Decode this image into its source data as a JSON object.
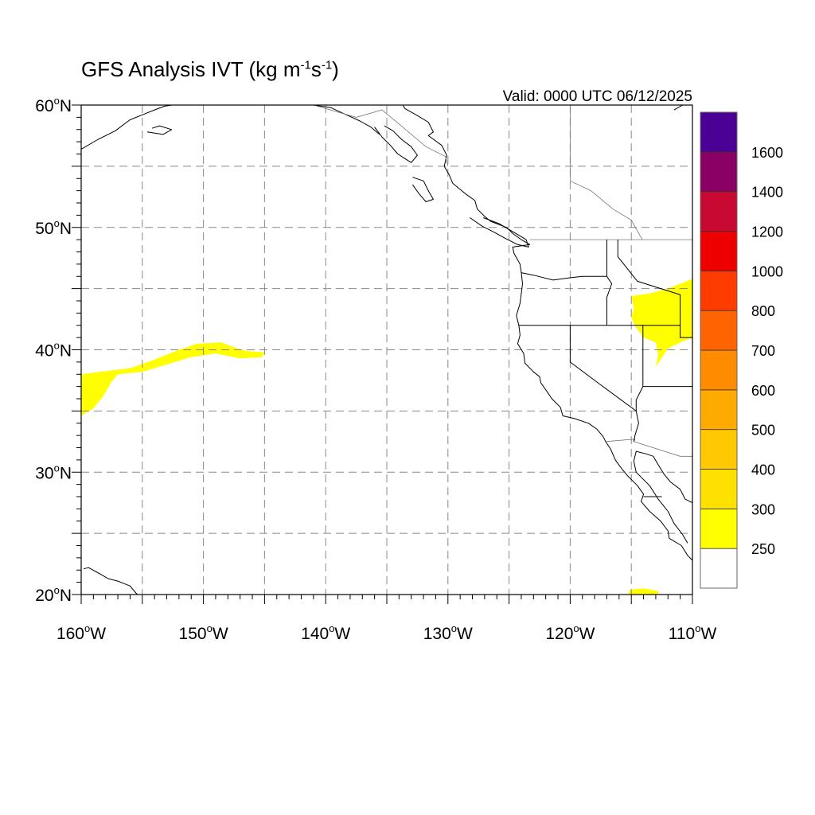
{
  "title": {
    "text": "GFS Analysis IVT (kg m",
    "sup1": "-1",
    "mid": "s",
    "sup2": "-1",
    "end": ")"
  },
  "valid_time": "Valid: 0000 UTC 06/12/2025",
  "map": {
    "lon_range": [
      -160,
      -110
    ],
    "lat_range": [
      20,
      60
    ],
    "lat_labels": [
      {
        "value": 60,
        "deg": "60",
        "hemi": "N"
      },
      {
        "value": 50,
        "deg": "50",
        "hemi": "N"
      },
      {
        "value": 40,
        "deg": "40",
        "hemi": "N"
      },
      {
        "value": 30,
        "deg": "30",
        "hemi": "N"
      },
      {
        "value": 20,
        "deg": "20",
        "hemi": "N"
      }
    ],
    "lon_labels": [
      {
        "value": -160,
        "deg": "160",
        "hemi": "W"
      },
      {
        "value": -150,
        "deg": "150",
        "hemi": "W"
      },
      {
        "value": -140,
        "deg": "140",
        "hemi": "W"
      },
      {
        "value": -130,
        "deg": "130",
        "hemi": "W"
      },
      {
        "value": -120,
        "deg": "120",
        "hemi": "W"
      },
      {
        "value": -110,
        "deg": "110",
        "hemi": "W"
      }
    ],
    "gridline_interval_deg": 5,
    "gridline_style": "dashed"
  },
  "colorbar": {
    "levels": [
      "250",
      "300",
      "400",
      "500",
      "600",
      "700",
      "800",
      "1000",
      "1200",
      "1400",
      "1600"
    ],
    "colors": [
      "#ffffff",
      "#ffff00",
      "#ffe100",
      "#ffc800",
      "#ffaa00",
      "#ff8c00",
      "#ff6400",
      "#ff3c00",
      "#ee0000",
      "#c80a32",
      "#8a0064",
      "#4b0096"
    ]
  },
  "ivt_regions": [
    {
      "name": "north-pacific-plume",
      "color": "#ffff00",
      "polygon": [
        [
          -160,
          38.0
        ],
        [
          -158.5,
          38.2
        ],
        [
          -156,
          38.5
        ],
        [
          -154,
          39.2
        ],
        [
          -152,
          40.0
        ],
        [
          -150.5,
          40.5
        ],
        [
          -148.5,
          40.6
        ],
        [
          -147.5,
          40.2
        ],
        [
          -146.5,
          39.9
        ],
        [
          -145,
          39.8
        ],
        [
          -145.2,
          39.4
        ],
        [
          -147,
          39.3
        ],
        [
          -149,
          39.7
        ],
        [
          -151,
          39.4
        ],
        [
          -153,
          38.8
        ],
        [
          -155,
          38.2
        ],
        [
          -157,
          38.0
        ],
        [
          -157.5,
          37.4
        ],
        [
          -158.2,
          36.2
        ],
        [
          -159,
          35.2
        ],
        [
          -160,
          34.6
        ]
      ]
    },
    {
      "name": "idaho-montana-plume",
      "color": "#ffff00",
      "polygon": [
        [
          -115,
          44.4
        ],
        [
          -113.5,
          44.6
        ],
        [
          -112,
          45.0
        ],
        [
          -111,
          45.4
        ],
        [
          -110,
          45.8
        ],
        [
          -110,
          41.0
        ],
        [
          -111,
          40.6
        ],
        [
          -112,
          40.1
        ],
        [
          -112.6,
          39.2
        ],
        [
          -113,
          38.6
        ],
        [
          -112.8,
          39.6
        ],
        [
          -113,
          40.6
        ],
        [
          -114,
          41.0
        ],
        [
          -114.6,
          41.8
        ],
        [
          -115,
          42.6
        ],
        [
          -114.8,
          43.4
        ]
      ]
    },
    {
      "name": "southern-plume",
      "color": "#ffff00",
      "polygon": [
        [
          -115.3,
          20.0
        ],
        [
          -115.1,
          20.4
        ],
        [
          -114,
          20.5
        ],
        [
          -112.8,
          20.3
        ],
        [
          -112.8,
          20.0
        ]
      ]
    }
  ],
  "coast": {
    "north_america": [
      [
        -133.7,
        60
      ],
      [
        -133.5,
        59.7
      ],
      [
        -132.6,
        59.2
      ],
      [
        -131.6,
        58.6
      ],
      [
        -131.2,
        57.8
      ],
      [
        -131.6,
        57.5
      ],
      [
        -130.5,
        56.7
      ],
      [
        -130.1,
        55.9
      ],
      [
        -130.3,
        55.0
      ],
      [
        -129.9,
        54.3
      ],
      [
        -129.6,
        53.6
      ],
      [
        -128.5,
        52.7
      ],
      [
        -127.8,
        52.2
      ],
      [
        -127.6,
        51.5
      ],
      [
        -127.0,
        50.9
      ],
      [
        -126.5,
        50.5
      ],
      [
        -125.2,
        50.0
      ],
      [
        -124.7,
        49.5
      ],
      [
        -124.0,
        49.0
      ],
      [
        -123.3,
        48.6
      ],
      [
        -124.7,
        48.4
      ],
      [
        -124.6,
        47.9
      ],
      [
        -124.1,
        47.0
      ],
      [
        -124.0,
        46.3
      ],
      [
        -123.9,
        45.4
      ],
      [
        -124.0,
        44.6
      ],
      [
        -124.1,
        43.8
      ],
      [
        -124.4,
        42.8
      ],
      [
        -124.2,
        42.0
      ],
      [
        -124.1,
        41.2
      ],
      [
        -124.3,
        40.5
      ],
      [
        -123.8,
        39.7
      ],
      [
        -123.7,
        38.9
      ],
      [
        -123.0,
        38.2
      ],
      [
        -122.5,
        37.8
      ],
      [
        -122.4,
        37.3
      ],
      [
        -121.9,
        36.6
      ],
      [
        -121.5,
        36.0
      ],
      [
        -120.8,
        35.3
      ],
      [
        -120.6,
        34.6
      ],
      [
        -119.7,
        34.4
      ],
      [
        -118.5,
        34.0
      ],
      [
        -117.8,
        33.5
      ],
      [
        -117.3,
        32.9
      ],
      [
        -117.1,
        32.5
      ],
      [
        -116.7,
        31.9
      ],
      [
        -116.3,
        31.0
      ],
      [
        -115.8,
        30.3
      ],
      [
        -115.3,
        29.7
      ],
      [
        -114.5,
        28.9
      ],
      [
        -114.0,
        28.2
      ],
      [
        -114.2,
        27.6
      ],
      [
        -113.5,
        26.8
      ],
      [
        -112.6,
        26.0
      ],
      [
        -112.0,
        25.2
      ],
      [
        -111.9,
        24.6
      ],
      [
        -110.9,
        24.0
      ],
      [
        -110.4,
        23.2
      ],
      [
        -110.0,
        22.8
      ]
    ],
    "gulf_mexico": [
      [
        -110,
        27.5
      ],
      [
        -110.6,
        27.8
      ],
      [
        -111.0,
        28.6
      ],
      [
        -111.8,
        29.2
      ],
      [
        -112.3,
        29.8
      ],
      [
        -112.8,
        30.6
      ],
      [
        -113.2,
        31.3
      ],
      [
        -113.8,
        31.5
      ],
      [
        -114.6,
        31.7
      ],
      [
        -114.8,
        30.9
      ],
      [
        -114.6,
        30.0
      ],
      [
        -113.5,
        28.9
      ],
      [
        -112.8,
        27.8
      ],
      [
        -112.0,
        26.8
      ],
      [
        -111.5,
        25.8
      ],
      [
        -110.8,
        24.9
      ],
      [
        -110.4,
        24.2
      ]
    ],
    "alaska_main": [
      [
        -160,
        56.4
      ],
      [
        -158.6,
        57.2
      ],
      [
        -157.2,
        57.9
      ],
      [
        -156.0,
        58.8
      ],
      [
        -155.0,
        59.2
      ],
      [
        -154.0,
        59.6
      ],
      [
        -153.2,
        59.9
      ],
      [
        -152.6,
        60.0
      ]
    ],
    "alaska_panhandle": [
      [
        -141,
        60
      ],
      [
        -139.6,
        59.8
      ],
      [
        -138.3,
        59.2
      ],
      [
        -137.2,
        58.7
      ],
      [
        -136.3,
        58.2
      ],
      [
        -135.6,
        57.6
      ]
    ],
    "alaska_islands": [
      [
        -136.0,
        58.2
      ],
      [
        -135.4,
        57.4
      ],
      [
        -134.7,
        56.7
      ],
      [
        -134.1,
        56.0
      ],
      [
        -133.0,
        55.3
      ],
      [
        -132.5,
        55.9
      ],
      [
        -133.0,
        56.6
      ],
      [
        -133.8,
        57.2
      ],
      [
        -134.5,
        57.9
      ],
      [
        -135.2,
        58.3
      ]
    ],
    "haida_gwaii": [
      [
        -132.9,
        54.1
      ],
      [
        -132.0,
        53.8
      ],
      [
        -131.6,
        53.0
      ],
      [
        -131.2,
        52.3
      ],
      [
        -131.8,
        52.1
      ],
      [
        -132.4,
        52.8
      ],
      [
        -132.9,
        53.5
      ]
    ],
    "vancouver_island": [
      [
        -128.2,
        50.8
      ],
      [
        -127.2,
        50.1
      ],
      [
        -126.2,
        49.6
      ],
      [
        -125.3,
        49.1
      ],
      [
        -124.3,
        48.6
      ],
      [
        -123.4,
        48.4
      ],
      [
        -123.6,
        49.0
      ],
      [
        -124.6,
        49.6
      ],
      [
        -125.8,
        50.3
      ],
      [
        -127.1,
        50.8
      ]
    ],
    "kodiak": [
      [
        -154.6,
        57.8
      ],
      [
        -153.3,
        57.6
      ],
      [
        -152.6,
        58.0
      ],
      [
        -153.6,
        58.3
      ],
      [
        -154.2,
        58.1
      ]
    ],
    "hawaii": [
      [
        -159.8,
        22.1
      ],
      [
        -159.4,
        22.2
      ],
      [
        -158.3,
        21.6
      ],
      [
        -157.8,
        21.3
      ],
      [
        -157.0,
        21.1
      ],
      [
        -156.5,
        20.9
      ],
      [
        -156.0,
        20.7
      ],
      [
        -155.5,
        20.1
      ],
      [
        -155.1,
        19.8
      ]
    ],
    "hudson_corner": [
      [
        -111.5,
        59.6
      ],
      [
        -110.8,
        60
      ],
      [
        -110,
        60
      ]
    ]
  },
  "boundaries": {
    "us_canada_49": [
      [
        -123.3,
        49
      ],
      [
        -110,
        49
      ]
    ],
    "ak_bc": [
      [
        -141,
        60
      ],
      [
        -137.5,
        59.0
      ],
      [
        -135.4,
        59.6
      ],
      [
        -133.7,
        58.2
      ],
      [
        -131.8,
        56.6
      ],
      [
        -130.2,
        55.8
      ],
      [
        -130.0,
        55.0
      ]
    ],
    "bc_ab": [
      [
        -120,
        60
      ],
      [
        -120,
        53.8
      ],
      [
        -118.3,
        53.0
      ],
      [
        -116.5,
        51.5
      ],
      [
        -115.0,
        50.6
      ],
      [
        -114.1,
        49.0
      ]
    ],
    "wa_or": [
      [
        -124.0,
        46.3
      ],
      [
        -123.0,
        46.1
      ],
      [
        -121.4,
        45.7
      ],
      [
        -119.9,
        45.9
      ],
      [
        -119.0,
        46.0
      ],
      [
        -117.0,
        46.0
      ]
    ],
    "or_id": [
      [
        -117.0,
        46.0
      ],
      [
        -116.6,
        45.4
      ],
      [
        -117.0,
        44.3
      ],
      [
        -117.0,
        42.0
      ]
    ],
    "wa_id": [
      [
        -117.0,
        49.0
      ],
      [
        -117.0,
        46.0
      ]
    ],
    "ca_or_nv_id_42": [
      [
        -124.2,
        42
      ],
      [
        -111.0,
        42
      ]
    ],
    "ca_nv": [
      [
        -120,
        42
      ],
      [
        -120,
        39.0
      ],
      [
        -117.6,
        37.2
      ],
      [
        -114.6,
        35.0
      ]
    ],
    "nv_ut_az": [
      [
        -114.05,
        42
      ],
      [
        -114.05,
        37.0
      ],
      [
        -114.6,
        35.9
      ],
      [
        -114.6,
        35.0
      ]
    ],
    "ut_az_37": [
      [
        -114.05,
        37
      ],
      [
        -110,
        37
      ]
    ],
    "id_mt_wy": [
      [
        -116.1,
        49
      ],
      [
        -116.1,
        47.6
      ],
      [
        -114.5,
        45.6
      ],
      [
        -111.0,
        44.5
      ],
      [
        -111.0,
        42.0
      ],
      [
        -111.0,
        41.0
      ],
      [
        -110,
        41.0
      ]
    ],
    "us_mexico": [
      [
        -117.1,
        32.5
      ],
      [
        -114.7,
        32.7
      ],
      [
        -114.8,
        32.5
      ],
      [
        -111.0,
        31.3
      ],
      [
        -110,
        31.3
      ]
    ],
    "ca_az_river": [
      [
        -114.6,
        35.0
      ],
      [
        -114.4,
        34.0
      ],
      [
        -114.7,
        33.0
      ],
      [
        -114.8,
        32.5
      ]
    ],
    "baja_state": [
      [
        -114.0,
        28.0
      ],
      [
        -112.5,
        28.0
      ]
    ]
  }
}
